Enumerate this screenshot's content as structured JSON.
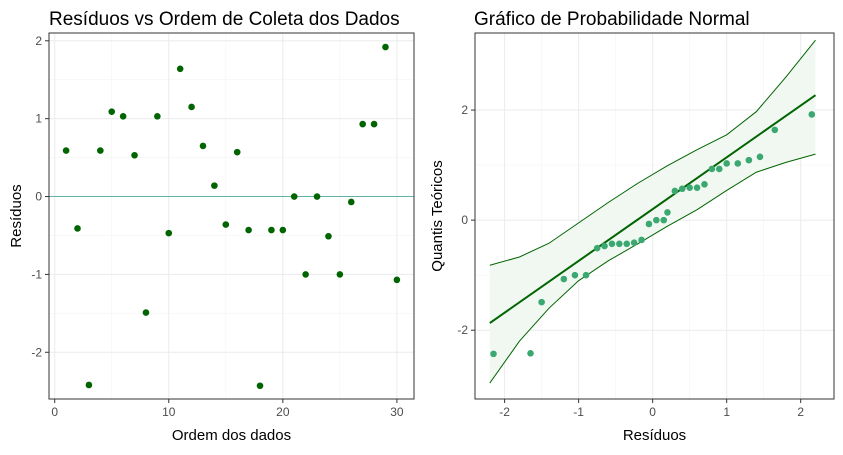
{
  "chart_data": [
    {
      "type": "scatter",
      "title": "Resíduos vs Ordem de Coleta dos Dados",
      "xlabel": "Ordem dos dados",
      "ylabel": "Resíduos",
      "xlim": [
        -0.5,
        31.5
      ],
      "ylim": [
        -2.6,
        2.1
      ],
      "xticks": [
        0,
        10,
        20,
        30
      ],
      "yticks": [
        -2,
        -1,
        0,
        1,
        2
      ],
      "grid": true,
      "reference_line": {
        "y": 0,
        "color": "#5fb3a5"
      },
      "point_color": "#006400",
      "x": [
        1,
        2,
        3,
        4,
        5,
        6,
        7,
        8,
        9,
        10,
        11,
        12,
        13,
        14,
        15,
        16,
        17,
        18,
        19,
        20,
        21,
        22,
        23,
        24,
        25,
        26,
        27,
        28,
        29,
        30
      ],
      "y": [
        0.59,
        -0.41,
        -2.42,
        0.59,
        1.09,
        1.03,
        0.53,
        -1.49,
        1.03,
        -0.47,
        1.64,
        1.15,
        0.65,
        0.14,
        -0.36,
        0.57,
        -0.43,
        -2.43,
        -0.43,
        -0.43,
        0.0,
        -1.0,
        0.0,
        -0.51,
        -1.0,
        -0.07,
        0.93,
        0.93,
        1.92,
        -1.07
      ]
    },
    {
      "type": "scatter",
      "title": "Gráfico de Probabilidade Normal",
      "xlabel": "Resíduos",
      "ylabel": "Quantis Teóricos",
      "xlim": [
        -2.4,
        2.45
      ],
      "ylim": [
        -3.25,
        3.4
      ],
      "xticks": [
        -2,
        -1,
        0,
        1,
        2
      ],
      "yticks": [
        -2,
        0,
        2
      ],
      "grid": true,
      "point_color": "#3aa870",
      "line_color": "#006400",
      "band_color": "#f1f8f1",
      "x": [
        -2.15,
        -1.65,
        -1.5,
        -1.2,
        -1.05,
        -0.9,
        -0.75,
        -0.65,
        -0.55,
        -0.45,
        -0.35,
        -0.25,
        -0.15,
        -0.05,
        0.05,
        0.15,
        0.2,
        0.3,
        0.4,
        0.5,
        0.6,
        0.7,
        0.8,
        0.9,
        1.0,
        1.15,
        1.3,
        1.45,
        1.65,
        2.15
      ],
      "y": [
        -2.43,
        -2.42,
        -1.49,
        -1.07,
        -1.0,
        -1.0,
        -0.51,
        -0.47,
        -0.43,
        -0.43,
        -0.43,
        -0.41,
        -0.36,
        -0.07,
        0.0,
        0.0,
        0.14,
        0.53,
        0.57,
        0.59,
        0.59,
        0.65,
        0.93,
        0.93,
        1.03,
        1.03,
        1.09,
        1.15,
        1.64,
        1.92
      ],
      "qq_line": {
        "x": [
          -2.2,
          2.2
        ],
        "y": [
          -1.87,
          2.27
        ]
      },
      "band_x": [
        -2.2,
        -1.8,
        -1.4,
        -1.0,
        -0.6,
        -0.2,
        0.2,
        0.6,
        1.0,
        1.4,
        1.8,
        2.2
      ],
      "band_upper": [
        -0.82,
        -0.67,
        -0.42,
        -0.05,
        0.32,
        0.67,
        0.99,
        1.28,
        1.55,
        1.97,
        2.6,
        3.27
      ],
      "band_lower": [
        -2.96,
        -2.2,
        -1.6,
        -1.1,
        -0.74,
        -0.43,
        -0.11,
        0.19,
        0.54,
        0.87,
        1.05,
        1.2
      ]
    }
  ]
}
